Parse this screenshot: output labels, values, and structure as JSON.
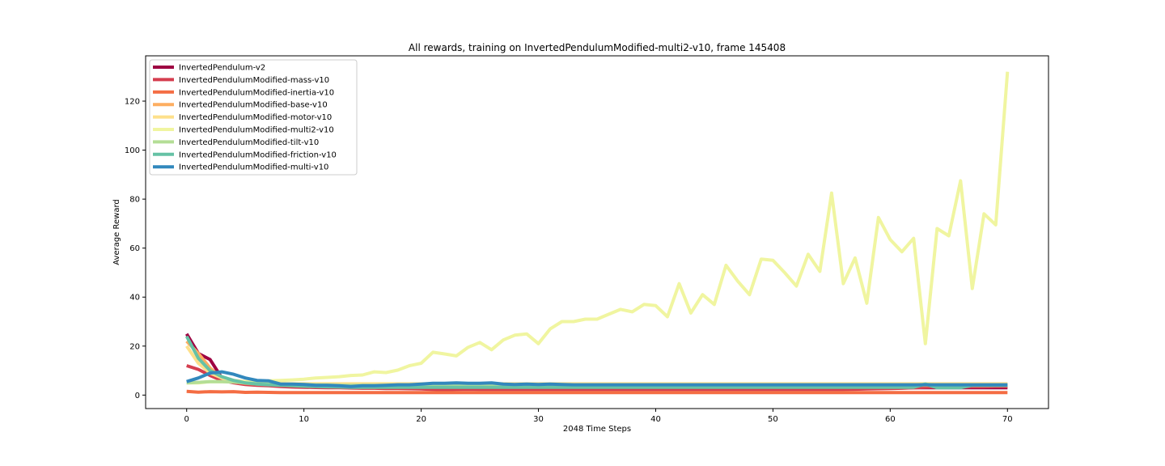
{
  "chart_data": {
    "type": "line",
    "title": "All rewards, training on InvertedPendulumModified-multi2-v10, frame 145408",
    "xlabel": "2048 Time Steps",
    "ylabel": "Average Reward",
    "xlim": [
      -3.5,
      73.5
    ],
    "ylim": [
      -5.5,
      138.5
    ],
    "xticks": [
      0,
      10,
      20,
      30,
      40,
      50,
      60,
      70
    ],
    "yticks": [
      0,
      20,
      40,
      60,
      80,
      100,
      120
    ],
    "legend_position": "upper-left",
    "grid": false,
    "series": [
      {
        "name": "InvertedPendulum-v2",
        "color": "#9e0142",
        "x": [
          0,
          1,
          2,
          3,
          4,
          5,
          6,
          7,
          8,
          9,
          10,
          11,
          12,
          13,
          14,
          15,
          16,
          17,
          18,
          19,
          20,
          21,
          22,
          23,
          24,
          25,
          26,
          27,
          28,
          29,
          30,
          31,
          32,
          33,
          34,
          35,
          36,
          37,
          38,
          39,
          40,
          41,
          42,
          43,
          44,
          45,
          46,
          47,
          48,
          49,
          50,
          51,
          52,
          53,
          54,
          55,
          56,
          57,
          58,
          59,
          60,
          61,
          62,
          63,
          64,
          65,
          66,
          67,
          68,
          69,
          70
        ],
        "y": [
          25,
          17,
          14.5,
          7,
          5.5,
          4.5,
          4.2,
          4,
          3.8,
          3.6,
          3.5,
          3.4,
          3.3,
          3.2,
          3.1,
          3.1,
          3,
          3,
          3,
          3,
          3,
          3,
          3,
          3,
          3,
          3,
          3,
          3,
          3,
          3,
          3,
          3,
          3,
          3,
          3,
          3,
          3,
          3,
          3,
          3,
          3,
          3,
          3,
          3,
          3,
          3,
          3,
          3,
          3,
          3,
          3,
          3,
          3,
          3,
          3,
          3,
          3,
          3,
          3,
          3,
          3,
          3,
          3,
          3,
          3,
          3,
          3,
          3,
          3,
          3,
          3
        ]
      },
      {
        "name": "InvertedPendulumModified-mass-v10",
        "color": "#d53e4f",
        "x": [
          0,
          1,
          2,
          3,
          4,
          5,
          6,
          7,
          8,
          9,
          10,
          11,
          12,
          13,
          14,
          15,
          16,
          17,
          18,
          19,
          20,
          21,
          22,
          23,
          24,
          25,
          26,
          27,
          28,
          29,
          30,
          31,
          32,
          33,
          34,
          35,
          36,
          37,
          38,
          39,
          40,
          41,
          42,
          43,
          44,
          45,
          46,
          47,
          48,
          49,
          50,
          51,
          52,
          53,
          54,
          55,
          56,
          57,
          58,
          59,
          60,
          61,
          62,
          63,
          64,
          65,
          66,
          67,
          68,
          69,
          70
        ],
        "y": [
          12,
          10.5,
          8,
          6,
          5,
          4.3,
          4,
          3.8,
          3.5,
          3.3,
          3.2,
          3.1,
          3,
          3,
          2.9,
          2.8,
          2.8,
          2.7,
          2.7,
          2.6,
          2.5,
          2.3,
          2.2,
          2.3,
          2.4,
          2.3,
          2.3,
          2.3,
          2.3,
          2.3,
          2.3,
          2.3,
          2.3,
          2.3,
          2.3,
          2.3,
          2.3,
          2.3,
          2.3,
          2.3,
          2.3,
          2.3,
          2.3,
          2.3,
          2.3,
          2.3,
          2.3,
          2.3,
          2.3,
          2.3,
          2.3,
          2.3,
          2.3,
          2.3,
          2.3,
          2.3,
          2.3,
          2.4,
          2.5,
          2.6,
          2.7,
          2.8,
          3,
          3.2,
          3.3,
          3.3,
          3.3,
          3.4,
          3.4,
          3.5,
          3.5
        ]
      },
      {
        "name": "InvertedPendulumModified-inertia-v10",
        "color": "#f46d43",
        "x": [
          0,
          1,
          2,
          3,
          4,
          5,
          6,
          7,
          8,
          9,
          10,
          11,
          12,
          13,
          14,
          15,
          16,
          17,
          18,
          19,
          20,
          21,
          22,
          23,
          24,
          25,
          26,
          27,
          28,
          29,
          30,
          31,
          32,
          33,
          34,
          35,
          36,
          37,
          38,
          39,
          40,
          41,
          42,
          43,
          44,
          45,
          46,
          47,
          48,
          49,
          50,
          51,
          52,
          53,
          54,
          55,
          56,
          57,
          58,
          59,
          60,
          61,
          62,
          63,
          64,
          65,
          66,
          67,
          68,
          69,
          70
        ],
        "y": [
          1.5,
          1.2,
          1.4,
          1.3,
          1.4,
          1.1,
          1.2,
          1.1,
          1,
          1,
          1,
          1,
          1,
          1,
          1,
          1,
          1,
          1,
          1,
          1,
          1,
          1,
          1,
          1,
          1,
          1,
          1,
          1,
          1,
          1,
          1,
          1,
          1,
          1,
          1,
          1,
          1,
          1,
          1,
          1,
          1,
          1,
          1,
          1,
          1,
          1,
          1,
          1,
          1,
          1,
          1,
          1,
          1,
          1,
          1,
          1,
          1,
          1,
          1,
          1,
          1,
          1,
          1,
          1,
          1,
          1,
          1,
          1,
          1,
          1,
          1
        ]
      },
      {
        "name": "InvertedPendulumModified-base-v10",
        "color": "#fdae61",
        "x": [
          0,
          1,
          2,
          3,
          4,
          5,
          6,
          7,
          8,
          9,
          10,
          11,
          12,
          13,
          14,
          15,
          16,
          17,
          18,
          19,
          20,
          21,
          22,
          23,
          24,
          25,
          26,
          27,
          28,
          29,
          30,
          31,
          32,
          33,
          34,
          35,
          36,
          37,
          38,
          39,
          40,
          41,
          42,
          43,
          44,
          45,
          46,
          47,
          48,
          49,
          50,
          51,
          52,
          53,
          54,
          55,
          56,
          57,
          58,
          59,
          60,
          61,
          62,
          63,
          64,
          65,
          66,
          67,
          68,
          69,
          70
        ],
        "y": [
          22,
          17,
          11,
          7,
          5.5,
          4.8,
          4.5,
          4.3,
          4.2,
          4.1,
          4,
          4,
          4,
          4,
          4,
          4,
          4,
          4,
          4,
          4,
          4,
          4,
          4,
          4,
          4,
          4,
          4,
          4,
          4,
          4,
          4,
          4,
          4,
          4,
          4,
          4,
          4,
          4,
          4,
          4,
          4,
          4,
          4,
          4,
          4,
          4,
          4,
          4,
          4,
          4,
          4,
          4,
          4,
          4,
          4,
          4,
          4,
          4,
          4,
          4,
          4,
          4,
          4,
          4,
          4,
          4,
          4,
          4,
          4,
          4,
          4
        ]
      },
      {
        "name": "InvertedPendulumModified-motor-v10",
        "color": "#fee08b",
        "x": [
          0,
          1,
          2,
          3,
          4,
          5,
          6,
          7,
          8,
          9,
          10,
          11,
          12,
          13,
          14,
          15,
          16,
          17,
          18,
          19,
          20,
          21,
          22,
          23,
          24,
          25,
          26,
          27,
          28,
          29,
          30,
          31,
          32,
          33,
          34,
          35,
          36,
          37,
          38,
          39,
          40,
          41,
          42,
          43,
          44,
          45,
          46,
          47,
          48,
          49,
          50,
          51,
          52,
          53,
          54,
          55,
          56,
          57,
          58,
          59,
          60,
          61,
          62,
          63,
          64,
          65,
          66,
          67,
          68,
          69,
          70
        ],
        "y": [
          20,
          13,
          9,
          7,
          6,
          5.5,
          5,
          4.8,
          4.7,
          4.6,
          4.6,
          4.6,
          4.6,
          4.6,
          4.6,
          4.6,
          4.6,
          4.6,
          4.6,
          4.6,
          4.6,
          4.6,
          4.6,
          4.6,
          4.6,
          4.6,
          4.6,
          4.6,
          4.6,
          4.6,
          4.6,
          4.6,
          4.6,
          4.6,
          4.6,
          4.6,
          4.6,
          4.6,
          4.6,
          4.6,
          4.6,
          4.6,
          4.6,
          4.6,
          4.6,
          4.6,
          4.6,
          4.6,
          4.6,
          4.6,
          4.6,
          4.6,
          4.6,
          4.6,
          4.6,
          4.6,
          4.6,
          4.6,
          4.6,
          4.6,
          4.6,
          4.6,
          4.6,
          4.6,
          4.6,
          4.6,
          4.6,
          4.6,
          4.6,
          4.6,
          4.6
        ]
      },
      {
        "name": "InvertedPendulumModified-multi2-v10",
        "color": "#f0f5a0",
        "x": [
          0,
          1,
          2,
          3,
          4,
          5,
          6,
          7,
          8,
          9,
          10,
          11,
          12,
          13,
          14,
          15,
          16,
          17,
          18,
          19,
          20,
          21,
          22,
          23,
          24,
          25,
          26,
          27,
          28,
          29,
          30,
          31,
          32,
          33,
          34,
          35,
          36,
          37,
          38,
          39,
          40,
          41,
          42,
          43,
          44,
          45,
          46,
          47,
          48,
          49,
          50,
          51,
          52,
          53,
          54,
          55,
          56,
          57,
          58,
          59,
          60,
          61,
          62,
          63,
          64,
          65,
          66,
          67,
          68,
          69,
          70
        ],
        "y": [
          5,
          5,
          5.5,
          5.5,
          5.5,
          5.5,
          5.5,
          5.8,
          6,
          6.2,
          6.5,
          7,
          7.2,
          7.5,
          8,
          8.2,
          9.5,
          9.2,
          10.2,
          12,
          13,
          17.5,
          16.8,
          16,
          19.5,
          21.5,
          18.5,
          22.5,
          24.5,
          25,
          21,
          27,
          30,
          30,
          31,
          31,
          33,
          35,
          34,
          37,
          36.5,
          32,
          45.5,
          33.5,
          41,
          37,
          53,
          46.5,
          41,
          55.5,
          55,
          50,
          44.5,
          57.5,
          50.5,
          82.5,
          45.5,
          56,
          37.5,
          72.5,
          63.5,
          58.5,
          64,
          21,
          68,
          65,
          87.5,
          43.5,
          74,
          69.5,
          132
        ]
      },
      {
        "name": "InvertedPendulumModified-tilt-v10",
        "color": "#b4de96",
        "x": [
          0,
          1,
          2,
          3,
          4,
          5,
          6,
          7,
          8,
          9,
          10,
          11,
          12,
          13,
          14,
          15,
          16,
          17,
          18,
          19,
          20,
          21,
          22,
          23,
          24,
          25,
          26,
          27,
          28,
          29,
          30,
          31,
          32,
          33,
          34,
          35,
          36,
          37,
          38,
          39,
          40,
          41,
          42,
          43,
          44,
          45,
          46,
          47,
          48,
          49,
          50,
          51,
          52,
          53,
          54,
          55,
          56,
          57,
          58,
          59,
          60,
          61,
          62,
          63,
          64,
          65,
          66,
          67,
          68,
          69,
          70
        ],
        "y": [
          5,
          5.2,
          5.5,
          5.5,
          5.3,
          5,
          4.8,
          4.6,
          4.5,
          4.4,
          4.3,
          4.2,
          4.1,
          4,
          4,
          4,
          4,
          4,
          4,
          4,
          4,
          4,
          4,
          4,
          4,
          4,
          4,
          4,
          4,
          4,
          4,
          4,
          4,
          4,
          4,
          4,
          4,
          4,
          4,
          4,
          4,
          4,
          4,
          4,
          4,
          4,
          4,
          4,
          4,
          4,
          4,
          4,
          4,
          4,
          4,
          4,
          4,
          4,
          4,
          4,
          4,
          4,
          4,
          4.5,
          4,
          4,
          4,
          4,
          4,
          4,
          4
        ]
      },
      {
        "name": "InvertedPendulumModified-friction-v10",
        "color": "#66c2a5",
        "x": [
          0,
          1,
          2,
          3,
          4,
          5,
          6,
          7,
          8,
          9,
          10,
          11,
          12,
          13,
          14,
          15,
          16,
          17,
          18,
          19,
          20,
          21,
          22,
          23,
          24,
          25,
          26,
          27,
          28,
          29,
          30,
          31,
          32,
          33,
          34,
          35,
          36,
          37,
          38,
          39,
          40,
          41,
          42,
          43,
          44,
          45,
          46,
          47,
          48,
          49,
          50,
          51,
          52,
          53,
          54,
          55,
          56,
          57,
          58,
          59,
          60,
          61,
          62,
          63,
          64,
          65,
          66,
          67,
          68,
          69,
          70
        ],
        "y": [
          24,
          15,
          10,
          7.5,
          6,
          5,
          4.5,
          4.2,
          4,
          3.8,
          3.6,
          3.5,
          3.4,
          3.3,
          3.2,
          3.2,
          3.2,
          3.2,
          3.2,
          3.2,
          3.2,
          3.2,
          3.2,
          3.2,
          3.2,
          3.2,
          3.2,
          3.2,
          3.2,
          3.2,
          3.2,
          3.2,
          3.2,
          3.2,
          3.2,
          3.2,
          3.2,
          3.2,
          3.2,
          3.2,
          3.2,
          3.2,
          3.2,
          3.2,
          3.2,
          3.2,
          3.2,
          3.2,
          3.2,
          3.2,
          3.2,
          3.2,
          3.2,
          3.2,
          3.2,
          3.2,
          3.2,
          3.2,
          3.2,
          3.2,
          3.2,
          3.2,
          3.2,
          4.5,
          3,
          3,
          3,
          4,
          4,
          4,
          4
        ]
      },
      {
        "name": "InvertedPendulumModified-multi-v10",
        "color": "#3288bd",
        "x": [
          0,
          1,
          2,
          3,
          4,
          5,
          6,
          7,
          8,
          9,
          10,
          11,
          12,
          13,
          14,
          15,
          16,
          17,
          18,
          19,
          20,
          21,
          22,
          23,
          24,
          25,
          26,
          27,
          28,
          29,
          30,
          31,
          32,
          33,
          34,
          35,
          36,
          37,
          38,
          39,
          40,
          41,
          42,
          43,
          44,
          45,
          46,
          47,
          48,
          49,
          50,
          51,
          52,
          53,
          54,
          55,
          56,
          57,
          58,
          59,
          60,
          61,
          62,
          63,
          64,
          65,
          66,
          67,
          68,
          69,
          70
        ],
        "y": [
          5.5,
          7,
          9,
          9.5,
          8.5,
          7,
          6,
          5.8,
          4.5,
          4.5,
          4.3,
          4,
          4,
          3.8,
          3.5,
          3.8,
          3.8,
          4,
          4.2,
          4.2,
          4.5,
          4.8,
          4.8,
          5,
          4.8,
          4.8,
          5,
          4.5,
          4.3,
          4.5,
          4.3,
          4.5,
          4.3,
          4.2,
          4.2,
          4.2,
          4.2,
          4.2,
          4.2,
          4.2,
          4.2,
          4.2,
          4.2,
          4.2,
          4.2,
          4.2,
          4.2,
          4.2,
          4.2,
          4.2,
          4.2,
          4.2,
          4.2,
          4.2,
          4.2,
          4.2,
          4.2,
          4.2,
          4.2,
          4.2,
          4.2,
          4.2,
          4.2,
          4.2,
          4.2,
          4.2,
          4.2,
          4.2,
          4.2,
          4.2,
          4.2
        ]
      }
    ]
  }
}
